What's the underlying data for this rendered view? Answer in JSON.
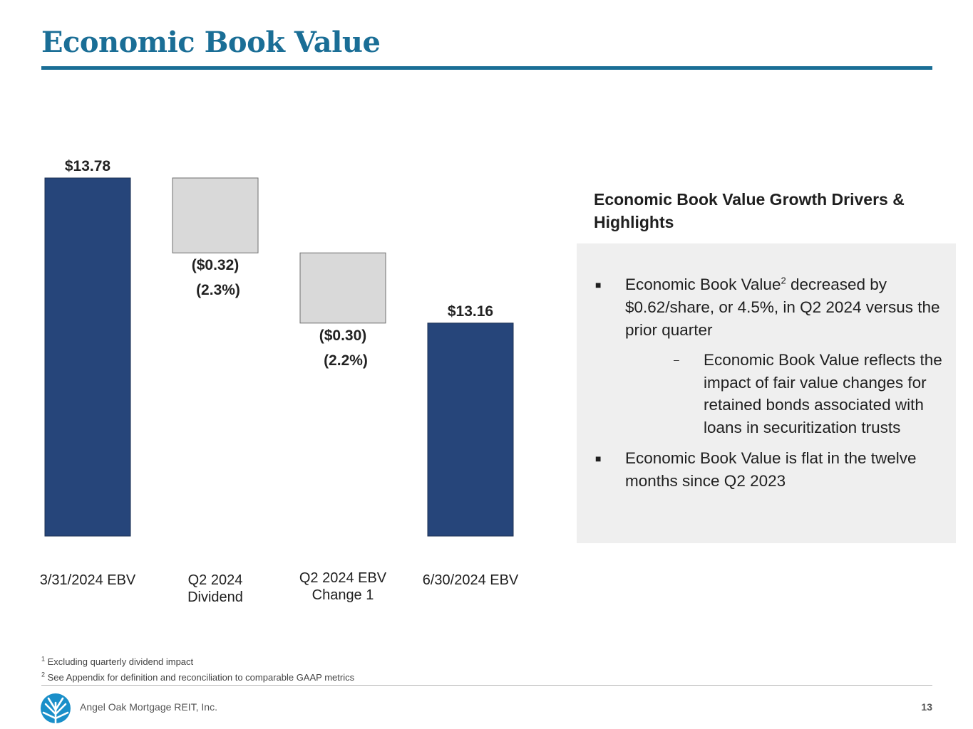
{
  "header": {
    "title": "Economic Book Value"
  },
  "chart_data": {
    "type": "waterfall",
    "categories": [
      "3/31/2024 EBV",
      "Q2 2024\nDividend",
      "Q2 2024 EBV\nChange 1",
      "6/30/2024 EBV"
    ],
    "values": [
      13.78,
      -0.32,
      -0.3,
      13.16
    ],
    "value_labels": [
      "$13.78",
      "($0.32)",
      "($0.30)",
      "$13.16"
    ],
    "percent_labels": [
      "",
      "(2.3%)",
      "(2.2%)",
      ""
    ],
    "bar_kinds": [
      "total",
      "delta",
      "delta",
      "total"
    ],
    "ylim": [
      12.25,
      13.78
    ],
    "colors": {
      "total": "#26457a",
      "delta": "#d9d9d9",
      "delta_border": "#6f6f6f"
    },
    "title": "",
    "xlabel": "",
    "ylabel": ""
  },
  "panel": {
    "heading": "Economic Book Value Growth Drivers & Highlights",
    "bullet_marker": "■",
    "sub_marker": "–",
    "bullet1": {
      "text": "Economic Book Value",
      "sup": "2",
      "rest": " decreased by $0.62/share, or 4.5%, in Q2 2024 versus the prior quarter"
    },
    "sub1": "Economic Book Value reflects the impact of fair value changes for retained bonds associated with loans in securitization trusts",
    "bullet2": "Economic Book Value is flat in the twelve months since Q2 2023"
  },
  "footnotes": {
    "n1": {
      "sup": "1",
      "text": "Excluding quarterly dividend impact"
    },
    "n2": {
      "sup": "2",
      "text": "See Appendix for definition and reconciliation to comparable GAAP metrics"
    }
  },
  "footer": {
    "company": "Angel Oak Mortgage REIT, Inc.",
    "page_number": "13",
    "logo_icon": "angel-oak-tree-logo-icon"
  },
  "colors": {
    "brand": "#1a6e96"
  }
}
